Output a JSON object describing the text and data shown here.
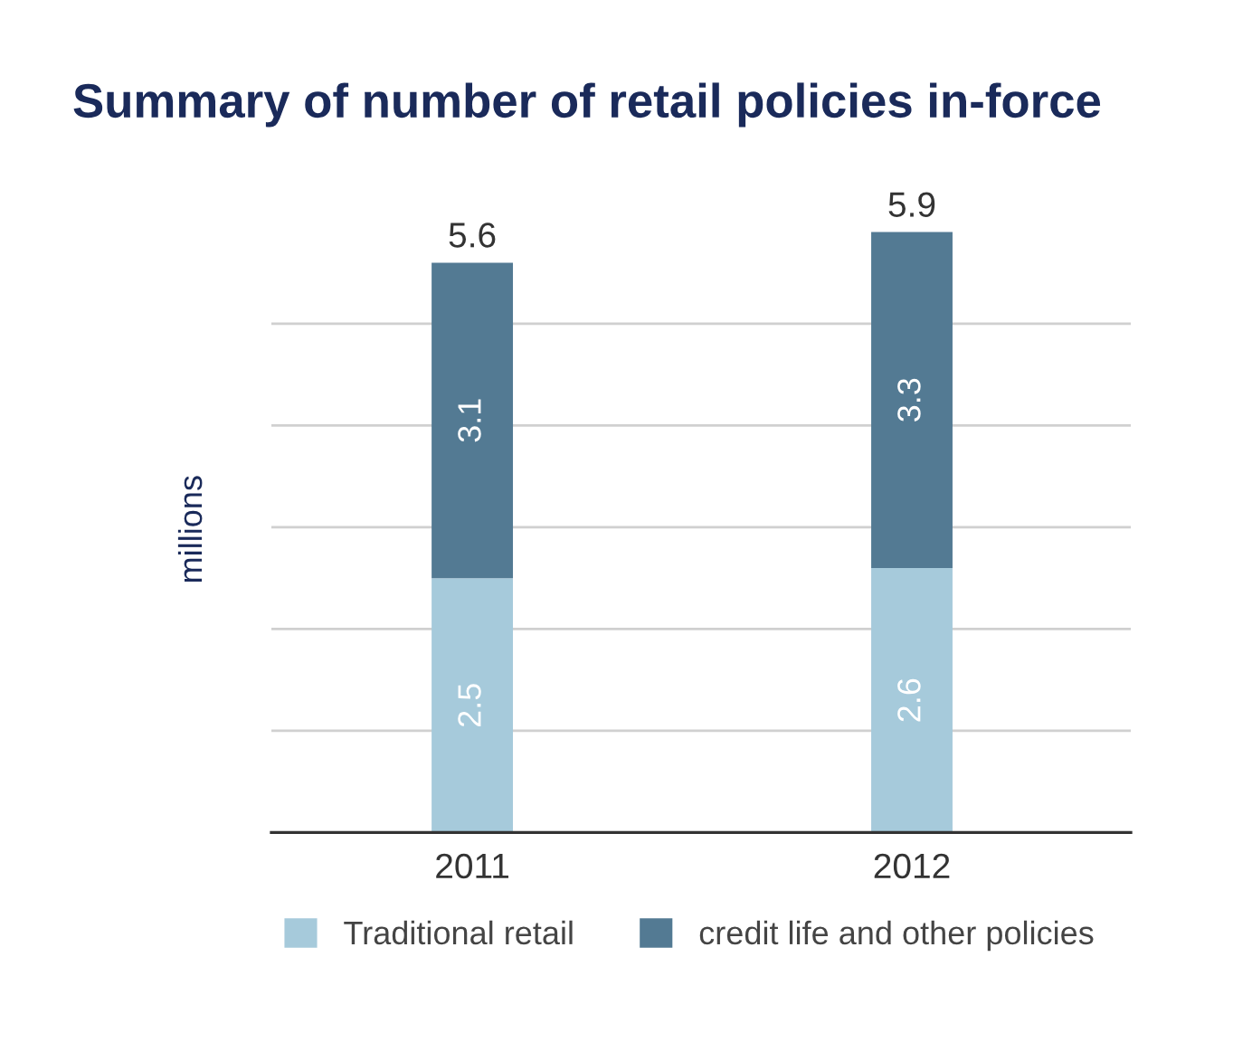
{
  "chart_data": {
    "type": "bar",
    "title": "Summary of number of retail policies in-force",
    "ylabel": "millions",
    "categories": [
      "2011",
      "2012"
    ],
    "stacked": true,
    "series": [
      {
        "name": "Traditional retail",
        "color": "#a6cadb",
        "values": [
          2.5,
          2.6
        ]
      },
      {
        "name": "credit life and other policies",
        "color": "#537a93",
        "values": [
          3.1,
          3.3
        ]
      }
    ],
    "tick_labels": "x",
    "grid": "y",
    "data_labels": true,
    "totals": [
      "5.6",
      "5.9"
    ],
    "legend": "bottom"
  }
}
